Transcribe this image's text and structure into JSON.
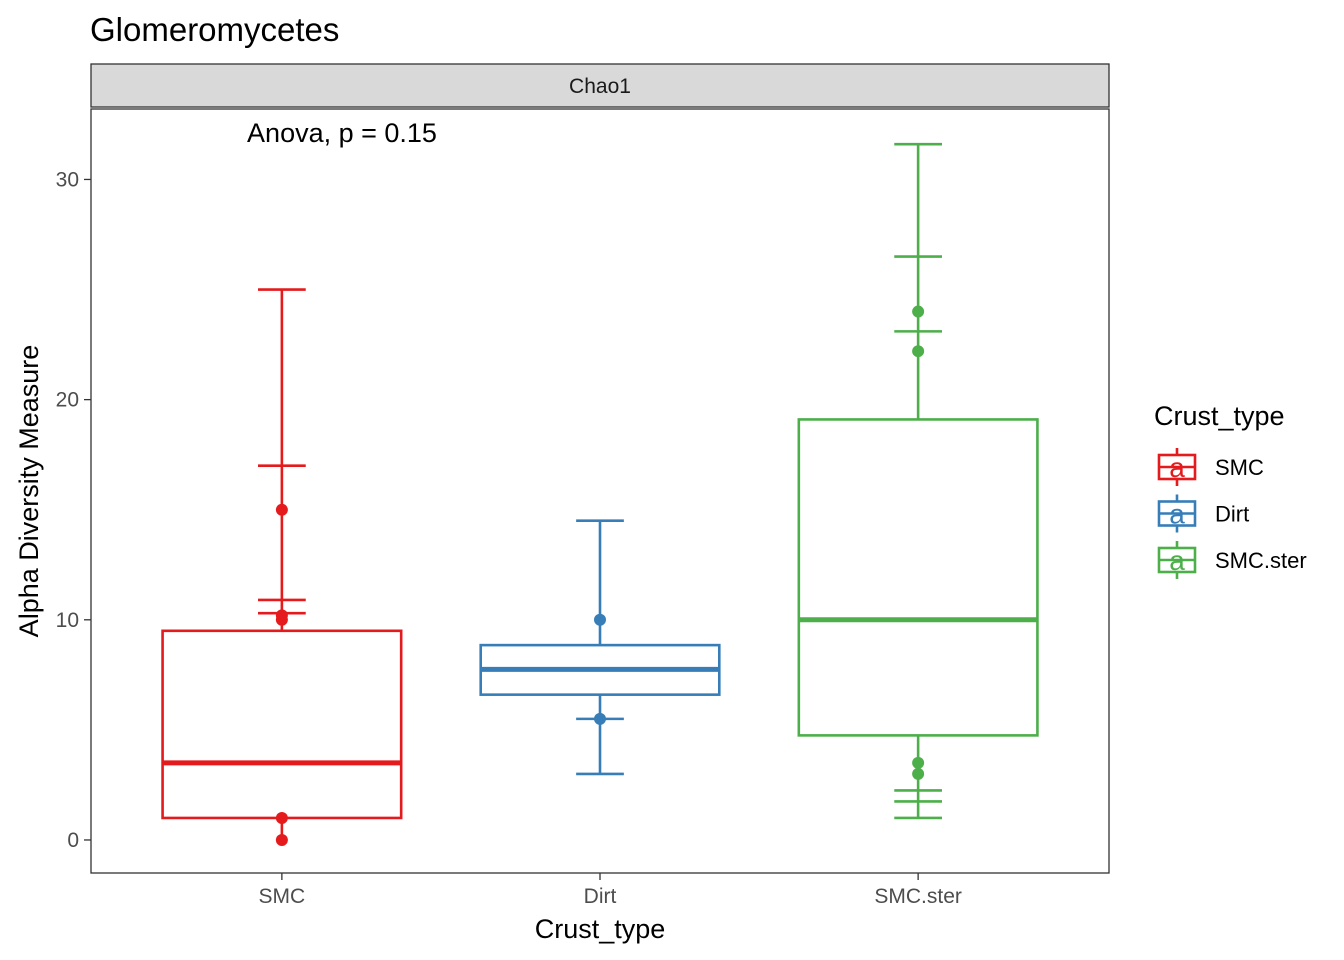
{
  "chart_data": {
    "type": "box",
    "title": "Glomeromycetes",
    "facet_label": "Chao1",
    "annotation": "Anova, p = 0.15",
    "xlabel": "Crust_type",
    "ylabel": "Alpha Diversity Measure",
    "ylim": [
      -1.5,
      33.2
    ],
    "yticks": [
      0,
      10,
      20,
      30
    ],
    "categories": [
      "SMC",
      "Dirt",
      "SMC.ster"
    ],
    "legend": {
      "title": "Crust_type",
      "position": "right",
      "entries": [
        "SMC",
        "Dirt",
        "SMC.ster"
      ],
      "key_glyph": "a"
    },
    "grid": false,
    "groups": [
      {
        "name": "SMC",
        "color": "#E41A1C",
        "box": {
          "q1": 1.0,
          "median": 3.5,
          "q3": 9.5,
          "whisker_low": 0,
          "whisker_high": 10
        },
        "points": [
          0,
          1,
          10,
          10.2,
          15
        ],
        "error_ticks": [
          10.3,
          10.9,
          17,
          25
        ]
      },
      {
        "name": "Dirt",
        "color": "#377EB8",
        "box": {
          "q1": 6.6,
          "median": 7.75,
          "q3": 8.85,
          "whisker_low": 5.5,
          "whisker_high": 10
        },
        "points": [
          5.5,
          10
        ],
        "error_ticks": [
          3,
          5.5,
          14.5
        ]
      },
      {
        "name": "SMC.ster",
        "color": "#4DAF4A",
        "box": {
          "q1": 4.75,
          "median": 10,
          "q3": 19.1,
          "whisker_low": 3.0,
          "whisker_high": 24
        },
        "points": [
          3.0,
          3.5,
          22.2,
          24
        ],
        "error_ticks": [
          1,
          1.75,
          2.25,
          23.1,
          26.5,
          31.6
        ]
      }
    ]
  }
}
